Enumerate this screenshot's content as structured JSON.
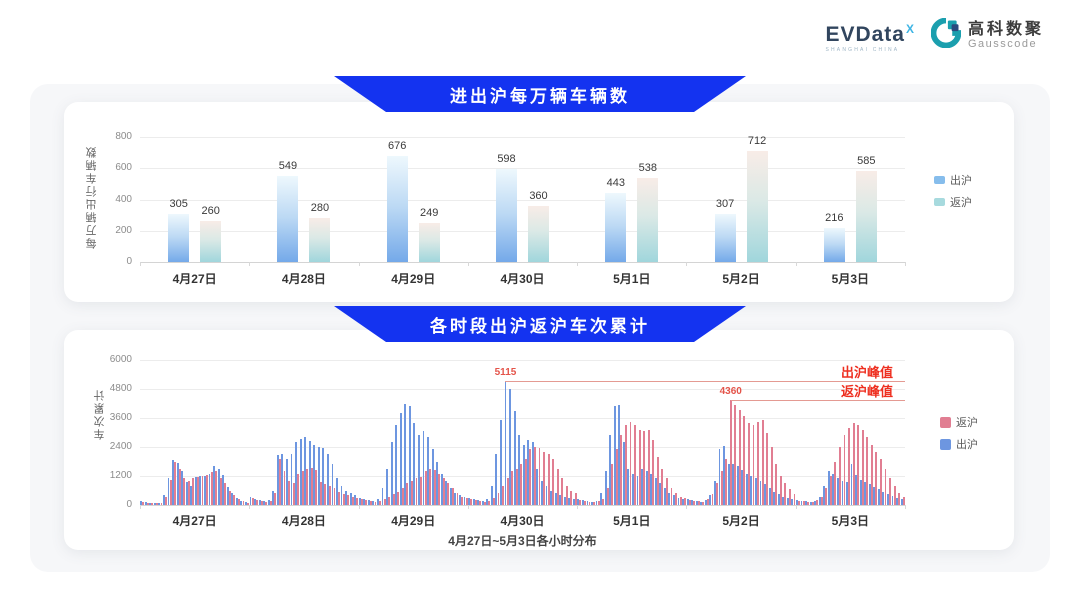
{
  "logo": {
    "evdata_name": "EVData",
    "evdata_sup": "X",
    "evdata_tagline": "SHANGHAI CHINA",
    "gausscode_cn": "高科数聚",
    "gausscode_en": "Gausscode"
  },
  "colors": {
    "banner_blue": "#1433f0",
    "chart1_blue_legend": "#86bdec",
    "chart1_teal_legend": "#a7dade",
    "chart2_blue": "#6d96e0",
    "chart2_pink": "#e17e92",
    "annotation_text_red": "#ee2f20",
    "annotation_line_red": "#e49a92"
  },
  "chart_data": [
    {
      "type": "bar",
      "title": "进出沪每万辆车辆数",
      "ylabel": "每万辆出行车辆数",
      "ylim": [
        0,
        800
      ],
      "yticks": [
        0,
        200,
        400,
        600,
        800
      ],
      "grid": true,
      "legend_position": "right",
      "categories": [
        "4月27日",
        "4月28日",
        "4月29日",
        "4月30日",
        "5月1日",
        "5月2日",
        "5月3日"
      ],
      "series": [
        {
          "name": "出沪",
          "values": [
            305,
            549,
            676,
            598,
            443,
            307,
            216
          ]
        },
        {
          "name": "返沪",
          "values": [
            260,
            280,
            249,
            360,
            538,
            712,
            585
          ]
        }
      ]
    },
    {
      "type": "bar",
      "title": "各时段出沪返沪车次累计",
      "xlabel": "4月27日~5月3日各小时分布",
      "ylabel": "车次累计",
      "ylim": [
        0,
        6000
      ],
      "yticks": [
        0,
        1200,
        2400,
        3600,
        4800,
        6000
      ],
      "grid": true,
      "legend_position": "right",
      "legend_order": [
        "返沪",
        "出沪"
      ],
      "days": [
        "4月27日",
        "4月28日",
        "4月29日",
        "4月30日",
        "5月1日",
        "5月2日",
        "5月3日"
      ],
      "hours_per_day": 24,
      "series": [
        {
          "name": "出沪",
          "values_by_day": [
            [
              150,
              120,
              100,
              80,
              90,
              400,
              1100,
              1850,
              1750,
              1400,
              950,
              800,
              1150,
              1200,
              1200,
              1300,
              1600,
              1500,
              1250,
              750,
              500,
              300,
              180,
              120
            ],
            [
              350,
              250,
              200,
              160,
              200,
              600,
              2050,
              2100,
              1900,
              2100,
              2600,
              2750,
              2800,
              2650,
              2500,
              2400,
              2350,
              2100,
              1700,
              1100,
              800,
              600,
              500,
              400
            ],
            [
              300,
              250,
              200,
              180,
              250,
              700,
              1500,
              2600,
              3300,
              3800,
              4200,
              4100,
              3400,
              2900,
              3050,
              2800,
              2300,
              1800,
              1300,
              1000,
              700,
              500,
              400,
              350
            ],
            [
              300,
              250,
              200,
              180,
              250,
              800,
              2100,
              3500,
              5115,
              4800,
              3900,
              2900,
              2500,
              2700,
              2600,
              1500,
              1000,
              800,
              600,
              500,
              400,
              350,
              300,
              250
            ],
            [
              250,
              200,
              150,
              130,
              180,
              500,
              1400,
              2900,
              4100,
              4150,
              2600,
              1500,
              1300,
              1200,
              1500,
              1400,
              1300,
              1100,
              900,
              700,
              500,
              400,
              300,
              250
            ],
            [
              250,
              200,
              150,
              130,
              200,
              400,
              1000,
              2300,
              2450,
              1700,
              1700,
              1600,
              1450,
              1300,
              1200,
              1100,
              1000,
              850,
              700,
              550,
              450,
              350,
              300,
              250
            ],
            [
              200,
              180,
              150,
              130,
              180,
              350,
              800,
              1400,
              1300,
              1100,
              1000,
              950,
              1700,
              1250,
              1050,
              950,
              850,
              750,
              650,
              550,
              450,
              380,
              300,
              250
            ]
          ]
        },
        {
          "name": "返沪",
          "values_by_day": [
            [
              120,
              100,
              90,
              70,
              80,
              350,
              1050,
              1800,
              1500,
              1100,
              1000,
              1100,
              1150,
              1200,
              1250,
              1350,
              1400,
              1100,
              900,
              600,
              400,
              250,
              150,
              100
            ],
            [
              300,
              220,
              180,
              140,
              180,
              500,
              1900,
              1400,
              1000,
              900,
              1300,
              1400,
              1500,
              1550,
              1450,
              950,
              850,
              800,
              700,
              550,
              450,
              400,
              350,
              300
            ],
            [
              250,
              200,
              150,
              130,
              180,
              250,
              350,
              450,
              550,
              700,
              900,
              1000,
              1100,
              1150,
              1400,
              1500,
              1450,
              1300,
              1100,
              900,
              700,
              500,
              350,
              300
            ],
            [
              250,
              200,
              150,
              130,
              180,
              300,
              500,
              800,
              1100,
              1400,
              1500,
              1700,
              1900,
              2300,
              2400,
              2350,
              2200,
              2100,
              1900,
              1500,
              1100,
              800,
              600,
              500
            ],
            [
              200,
              150,
              120,
              110,
              150,
              250,
              700,
              1700,
              2300,
              2900,
              3300,
              3450,
              3300,
              3100,
              3050,
              3100,
              2700,
              2000,
              1500,
              1100,
              700,
              500,
              350,
              300
            ],
            [
              200,
              180,
              150,
              140,
              250,
              450,
              900,
              1400,
              1900,
              4360,
              4150,
              3950,
              3700,
              3400,
              3300,
              3450,
              3500,
              3000,
              2400,
              1700,
              1200,
              900,
              650,
              450
            ],
            [
              180,
              160,
              140,
              130,
              200,
              350,
              700,
              1200,
              1800,
              2400,
              2900,
              3200,
              3400,
              3300,
              3100,
              2800,
              2500,
              2200,
              1900,
              1500,
              1100,
              800,
              500,
              350
            ]
          ]
        }
      ],
      "annotations": [
        {
          "label": "出沪峰值",
          "value": 5115,
          "series": "出沪"
        },
        {
          "label": "返沪峰值",
          "value": 4360,
          "series": "返沪"
        }
      ]
    }
  ]
}
